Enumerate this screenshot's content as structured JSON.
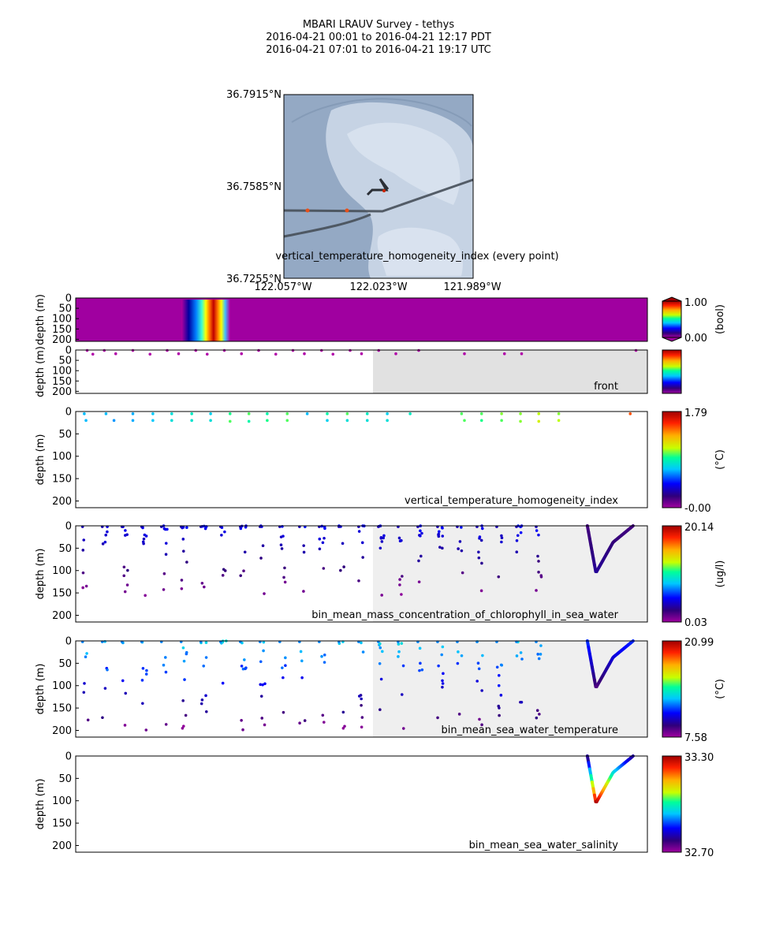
{
  "title": {
    "line1": "MBARI LRAUV Survey - tethys",
    "line2": "2016-04-21 00:01  to  2016-04-21 12:17 PDT",
    "line3": "2016-04-21 07:01  to  2016-04-21 19:17 UTC"
  },
  "map": {
    "lat_labels": [
      "36.7915°N",
      "36.7585°N",
      "36.7255°N"
    ],
    "lon_labels": [
      "122.057°W",
      "122.023°W",
      "121.989°W"
    ],
    "overlay_label": "vertical_temperature_homogeneity_index (every point)",
    "colors": {
      "water": "#94a9c4",
      "land": "#c9d6e6",
      "track": "#464f59",
      "marker": "#e8501a"
    }
  },
  "chart_data": [
    {
      "type": "heatmap",
      "name": "vertical_temperature_homogeneity_index (every point)",
      "ylabel": "depth (m)",
      "ylim": [
        210,
        0
      ],
      "yticks": [
        0,
        50,
        100,
        150,
        200
      ],
      "colorbar": {
        "label": "(bool)",
        "min": "0.00",
        "max": "1.00",
        "extend": "both"
      },
      "background_value": 0.0,
      "rainbow_band_fraction": [
        0.185,
        0.27
      ]
    },
    {
      "type": "scatter",
      "name": "front",
      "ylabel": "depth (m)",
      "ylim": [
        210,
        0
      ],
      "yticks": [
        0,
        50,
        100,
        150,
        200
      ],
      "shaded_from_fraction": 0.52,
      "colorbar": {
        "label": "",
        "min": "",
        "max": ""
      },
      "points": [
        [
          0.02,
          2
        ],
        [
          0.03,
          20
        ],
        [
          0.05,
          2
        ],
        [
          0.07,
          18
        ],
        [
          0.1,
          2
        ],
        [
          0.13,
          20
        ],
        [
          0.16,
          2
        ],
        [
          0.18,
          18
        ],
        [
          0.21,
          2
        ],
        [
          0.23,
          20
        ],
        [
          0.26,
          2
        ],
        [
          0.29,
          18
        ],
        [
          0.32,
          2
        ],
        [
          0.35,
          20
        ],
        [
          0.38,
          2
        ],
        [
          0.4,
          18
        ],
        [
          0.43,
          2
        ],
        [
          0.45,
          20
        ],
        [
          0.48,
          2
        ],
        [
          0.5,
          18
        ],
        [
          0.53,
          2
        ],
        [
          0.56,
          18
        ],
        [
          0.6,
          2
        ],
        [
          0.68,
          18
        ],
        [
          0.75,
          18
        ],
        [
          0.78,
          18
        ],
        [
          0.98,
          2
        ]
      ]
    },
    {
      "type": "scatter",
      "name": "vertical_temperature_homogeneity_index",
      "ylabel": "depth (m)",
      "ylim": [
        215,
        0
      ],
      "yticks": [
        0,
        50,
        100,
        150,
        200
      ],
      "colorbar": {
        "label": "(°C)",
        "min": "-0.00",
        "max": "1.79",
        "vmin": 0.0,
        "vmax": 1.79
      },
      "points": [
        [
          0.015,
          5,
          0.7
        ],
        [
          0.018,
          20,
          0.7
        ],
        [
          0.053,
          5,
          0.7
        ],
        [
          0.067,
          20,
          0.65
        ],
        [
          0.1,
          5,
          0.68
        ],
        [
          0.1,
          20,
          0.68
        ],
        [
          0.135,
          5,
          0.72
        ],
        [
          0.135,
          20,
          0.72
        ],
        [
          0.168,
          5,
          0.8
        ],
        [
          0.168,
          20,
          0.8
        ],
        [
          0.203,
          5,
          0.85
        ],
        [
          0.203,
          20,
          0.82
        ],
        [
          0.236,
          5,
          0.75
        ],
        [
          0.236,
          20,
          0.8
        ],
        [
          0.27,
          5,
          0.95
        ],
        [
          0.27,
          22,
          1.0
        ],
        [
          0.303,
          5,
          1.0
        ],
        [
          0.303,
          22,
          0.9
        ],
        [
          0.335,
          5,
          0.9
        ],
        [
          0.335,
          20,
          0.95
        ],
        [
          0.37,
          5,
          1.0
        ],
        [
          0.37,
          20,
          1.0
        ],
        [
          0.405,
          5,
          0.7
        ],
        [
          0.44,
          5,
          0.9
        ],
        [
          0.44,
          20,
          0.75
        ],
        [
          0.475,
          5,
          1.0
        ],
        [
          0.475,
          20,
          0.8
        ],
        [
          0.51,
          5,
          0.85
        ],
        [
          0.51,
          20,
          0.8
        ],
        [
          0.545,
          5,
          0.75
        ],
        [
          0.545,
          20,
          0.8
        ],
        [
          0.585,
          5,
          0.85
        ],
        [
          0.675,
          5,
          1.0
        ],
        [
          0.68,
          20,
          1.0
        ],
        [
          0.71,
          5,
          1.0
        ],
        [
          0.71,
          20,
          0.95
        ],
        [
          0.745,
          5,
          1.05
        ],
        [
          0.745,
          20,
          1.0
        ],
        [
          0.778,
          5,
          1.05
        ],
        [
          0.778,
          22,
          1.05
        ],
        [
          0.81,
          5,
          1.1
        ],
        [
          0.81,
          22,
          1.15
        ],
        [
          0.845,
          5,
          1.05
        ],
        [
          0.845,
          20,
          1.1
        ],
        [
          0.97,
          5,
          1.5
        ]
      ]
    },
    {
      "type": "scatter",
      "name": "bin_mean_mass_concentration_of_chlorophyll_in_sea_water",
      "ylabel": "depth (m)",
      "ylim": [
        215,
        0
      ],
      "yticks": [
        0,
        50,
        100,
        150,
        200
      ],
      "shaded_from_fraction": 0.52,
      "colorbar": {
        "label": "(ug/l)",
        "min": "0.03",
        "max": "20.14",
        "vmin": 0.03,
        "vmax": 20.14
      },
      "profile_x_fraction": [
        0.895,
        0.91,
        0.94,
        0.965,
        0.975
      ],
      "profile_max_depth_m": 105
    },
    {
      "type": "scatter",
      "name": "bin_mean_sea_water_temperature",
      "ylabel": "depth (m)",
      "ylim": [
        215,
        0
      ],
      "yticks": [
        0,
        50,
        100,
        150,
        200
      ],
      "shaded_from_fraction": 0.52,
      "colorbar": {
        "label": "(°C)",
        "min": "7.58",
        "max": "20.99",
        "vmin": 7.58,
        "vmax": 20.99
      },
      "profile_x_fraction": [
        0.895,
        0.91,
        0.94,
        0.965,
        0.975
      ],
      "profile_max_depth_m": 105
    },
    {
      "type": "line",
      "name": "bin_mean_sea_water_salinity",
      "ylabel": "depth (m)",
      "ylim": [
        215,
        0
      ],
      "yticks": [
        0,
        50,
        100,
        150,
        200
      ],
      "colorbar": {
        "label": "",
        "min": "32.70",
        "max": "33.30",
        "vmin": 32.7,
        "vmax": 33.3
      },
      "profile_x_fraction": [
        0.895,
        0.91,
        0.94,
        0.965,
        0.975
      ],
      "profile_max_depth_m": 105
    }
  ]
}
